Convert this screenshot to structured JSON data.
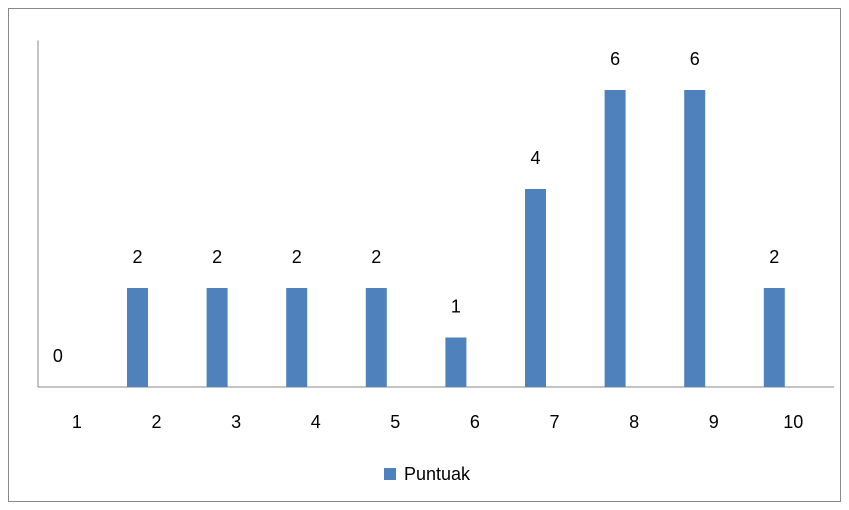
{
  "chart_data": {
    "type": "bar",
    "categories": [
      "1",
      "2",
      "3",
      "4",
      "5",
      "6",
      "7",
      "8",
      "9",
      "10"
    ],
    "series": [
      {
        "name": "Puntuak",
        "color": "#4f81bd",
        "values": [
          0,
          2,
          2,
          2,
          2,
          1,
          4,
          6,
          6,
          2
        ]
      }
    ],
    "ylim": [
      0,
      7
    ],
    "legend": "bottom"
  }
}
